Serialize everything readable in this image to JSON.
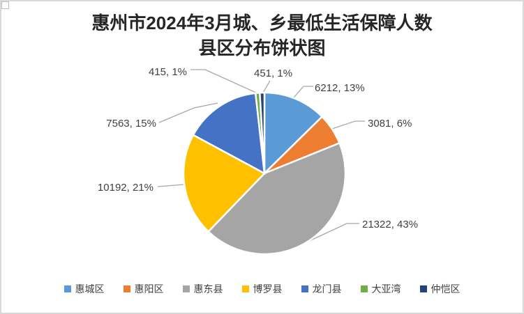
{
  "chart_data": {
    "type": "pie",
    "title": "惠州市2024年3月城、乡最低生活保障人数县区分布饼状图",
    "title_lines": [
      "惠州市2024年3月城、乡最低生活保障人数",
      "县区分布饼状图"
    ],
    "categories": [
      "惠城区",
      "惠阳区",
      "惠东县",
      "博罗县",
      "龙门县",
      "大亚湾",
      "仲恺区"
    ],
    "values": [
      6212,
      3081,
      21322,
      10192,
      7563,
      415,
      451
    ],
    "percent_labels": [
      "13%",
      "6%",
      "43%",
      "21%",
      "15%",
      "1%",
      "1%"
    ],
    "data_labels": [
      "6212, 13%",
      "3081, 6%",
      "21322, 43%",
      "10192, 21%",
      "7563, 15%",
      "415, 1%",
      "451, 1%"
    ],
    "colors": [
      "#5B9BD5",
      "#ED7D31",
      "#A5A5A5",
      "#FFC000",
      "#4472C4",
      "#70AD47",
      "#264478"
    ],
    "legend": {
      "position": "bottom",
      "entries": [
        "惠城区",
        "惠阳区",
        "惠东县",
        "博罗县",
        "龙门县",
        "大亚湾",
        "仲恺区"
      ]
    },
    "start_angle_deg": 0,
    "direction": "clockwise",
    "styles": {
      "title_color": "#262626",
      "label_color": "#404040",
      "leader_line_color": "#A6A6A6",
      "slice_border_color": "#FFFFFF",
      "legend_text_color": "#404040"
    }
  }
}
